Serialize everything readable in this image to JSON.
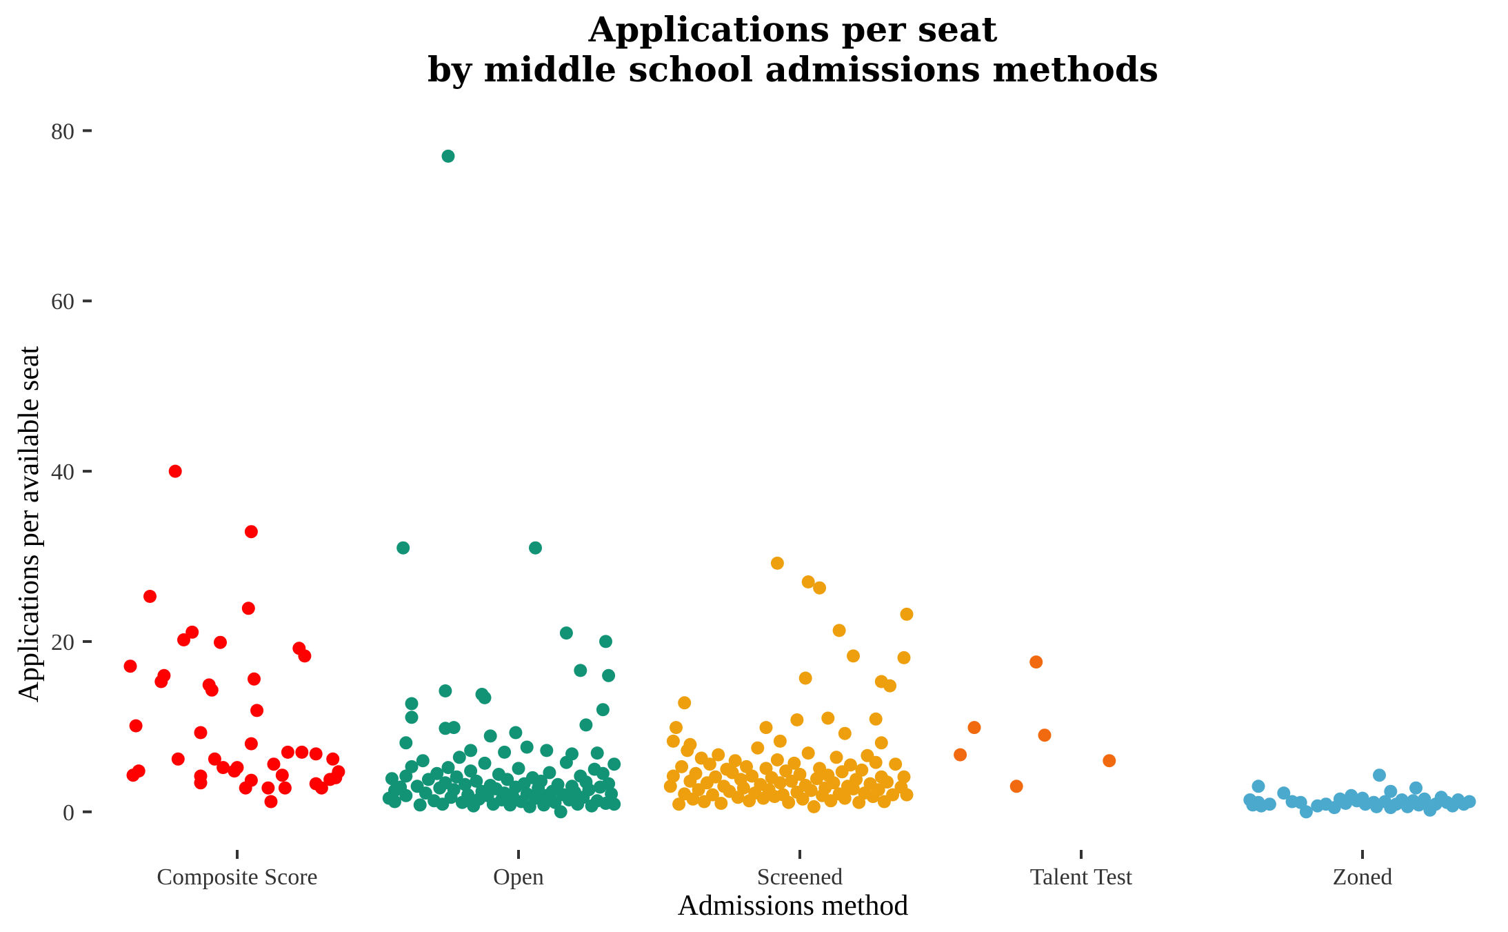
{
  "chart_data": {
    "type": "scatter",
    "title_lines": [
      "Applications per seat",
      "by middle school admissions methods"
    ],
    "xlabel": "Admissions method",
    "ylabel": "Applications per available seat",
    "ylim": [
      -3.5,
      84
    ],
    "yticks": [
      0,
      20,
      40,
      60,
      80
    ],
    "grid": false,
    "legend": "none",
    "categories": [
      "Composite Score",
      "Open",
      "Screened",
      "Talent Test",
      "Zoned"
    ],
    "series": [
      {
        "category": "Composite Score",
        "color": "#ff0000",
        "points": [
          [
            -0.38,
            17.1
          ],
          [
            -0.36,
            10.1
          ],
          [
            -0.37,
            4.3
          ],
          [
            -0.35,
            4.8
          ],
          [
            -0.31,
            25.3
          ],
          [
            -0.27,
            15.3
          ],
          [
            -0.26,
            16.0
          ],
          [
            -0.22,
            40.0
          ],
          [
            -0.21,
            6.2
          ],
          [
            -0.19,
            20.2
          ],
          [
            -0.16,
            21.1
          ],
          [
            -0.13,
            9.3
          ],
          [
            -0.13,
            3.4
          ],
          [
            -0.13,
            4.2
          ],
          [
            -0.1,
            14.9
          ],
          [
            -0.09,
            14.3
          ],
          [
            -0.08,
            6.2
          ],
          [
            -0.06,
            19.9
          ],
          [
            -0.05,
            5.2
          ],
          [
            -0.01,
            4.8
          ],
          [
            0.0,
            5.2
          ],
          [
            0.03,
            2.8
          ],
          [
            0.04,
            23.9
          ],
          [
            0.05,
            8.0
          ],
          [
            0.05,
            3.7
          ],
          [
            0.05,
            32.9
          ],
          [
            0.06,
            15.6
          ],
          [
            0.07,
            11.9
          ],
          [
            0.11,
            2.8
          ],
          [
            0.12,
            1.2
          ],
          [
            0.13,
            5.6
          ],
          [
            0.16,
            4.3
          ],
          [
            0.17,
            2.8
          ],
          [
            0.18,
            7.0
          ],
          [
            0.22,
            19.2
          ],
          [
            0.23,
            7.0
          ],
          [
            0.24,
            18.3
          ],
          [
            0.28,
            6.8
          ],
          [
            0.28,
            3.3
          ],
          [
            0.3,
            2.8
          ],
          [
            0.33,
            3.8
          ],
          [
            0.34,
            6.2
          ],
          [
            0.35,
            4.0
          ],
          [
            0.36,
            4.7
          ]
        ]
      },
      {
        "category": "Open",
        "color": "#129376",
        "points": [
          [
            -0.25,
            77.0
          ],
          [
            -0.41,
            31.0
          ],
          [
            0.06,
            31.0
          ],
          [
            0.17,
            21.0
          ],
          [
            0.31,
            20.0
          ],
          [
            0.22,
            16.6
          ],
          [
            0.32,
            16.0
          ],
          [
            -0.26,
            14.2
          ],
          [
            -0.13,
            13.8
          ],
          [
            -0.12,
            13.4
          ],
          [
            -0.38,
            12.7
          ],
          [
            0.3,
            12.0
          ],
          [
            -0.38,
            11.1
          ],
          [
            0.24,
            10.2
          ],
          [
            -0.26,
            9.8
          ],
          [
            -0.23,
            9.9
          ],
          [
            -0.01,
            9.3
          ],
          [
            -0.1,
            8.9
          ],
          [
            -0.4,
            8.1
          ],
          [
            0.03,
            7.6
          ],
          [
            -0.17,
            7.2
          ],
          [
            -0.05,
            7.0
          ],
          [
            0.1,
            7.2
          ],
          [
            0.19,
            6.8
          ],
          [
            0.28,
            6.9
          ],
          [
            -0.45,
            3.9
          ],
          [
            -0.44,
            2.5
          ],
          [
            -0.46,
            1.6
          ],
          [
            -0.44,
            1.2
          ],
          [
            -0.42,
            2.9
          ],
          [
            -0.4,
            4.2
          ],
          [
            -0.4,
            1.9
          ],
          [
            -0.38,
            5.3
          ],
          [
            -0.36,
            3.0
          ],
          [
            -0.35,
            0.8
          ],
          [
            -0.34,
            6.0
          ],
          [
            -0.33,
            2.2
          ],
          [
            -0.32,
            3.8
          ],
          [
            -0.3,
            1.3
          ],
          [
            -0.29,
            4.5
          ],
          [
            -0.28,
            2.8
          ],
          [
            -0.27,
            0.9
          ],
          [
            -0.26,
            3.4
          ],
          [
            -0.25,
            5.2
          ],
          [
            -0.24,
            1.7
          ],
          [
            -0.23,
            2.6
          ],
          [
            -0.22,
            4.1
          ],
          [
            -0.21,
            6.4
          ],
          [
            -0.2,
            1.1
          ],
          [
            -0.19,
            3.2
          ],
          [
            -0.18,
            2.0
          ],
          [
            -0.17,
            4.8
          ],
          [
            -0.16,
            0.7
          ],
          [
            -0.15,
            3.6
          ],
          [
            -0.14,
            1.5
          ],
          [
            -0.13,
            2.4
          ],
          [
            -0.12,
            5.7
          ],
          [
            -0.11,
            1.9
          ],
          [
            -0.1,
            3.1
          ],
          [
            -0.09,
            0.9
          ],
          [
            -0.08,
            2.7
          ],
          [
            -0.07,
            4.4
          ],
          [
            -0.06,
            1.4
          ],
          [
            -0.05,
            2.2
          ],
          [
            -0.04,
            3.8
          ],
          [
            -0.03,
            0.8
          ],
          [
            -0.02,
            1.8
          ],
          [
            -0.01,
            2.9
          ],
          [
            0.0,
            5.1
          ],
          [
            0.01,
            1.2
          ],
          [
            0.02,
            3.3
          ],
          [
            0.03,
            2.1
          ],
          [
            0.04,
            0.6
          ],
          [
            0.05,
            4.0
          ],
          [
            0.06,
            1.6
          ],
          [
            0.07,
            2.8
          ],
          [
            0.08,
            3.6
          ],
          [
            0.09,
            0.8
          ],
          [
            0.1,
            1.9
          ],
          [
            0.11,
            4.6
          ],
          [
            0.12,
            2.4
          ],
          [
            0.13,
            1.1
          ],
          [
            0.14,
            3.2
          ],
          [
            0.15,
            0.0
          ],
          [
            0.16,
            2.0
          ],
          [
            0.17,
            5.8
          ],
          [
            0.18,
            1.4
          ],
          [
            0.19,
            3.0
          ],
          [
            0.2,
            2.3
          ],
          [
            0.21,
            0.9
          ],
          [
            0.22,
            4.2
          ],
          [
            0.23,
            1.7
          ],
          [
            0.24,
            3.5
          ],
          [
            0.25,
            2.6
          ],
          [
            0.26,
            0.7
          ],
          [
            0.27,
            5.0
          ],
          [
            0.28,
            1.3
          ],
          [
            0.29,
            2.9
          ],
          [
            0.3,
            4.5
          ],
          [
            0.31,
            1.0
          ],
          [
            0.32,
            3.3
          ],
          [
            0.33,
            2.1
          ],
          [
            0.34,
            5.6
          ],
          [
            0.34,
            0.9
          ]
        ]
      },
      {
        "category": "Screened",
        "color": "#ee9f0d",
        "points": [
          [
            -0.08,
            29.2
          ],
          [
            0.03,
            27.0
          ],
          [
            0.07,
            26.3
          ],
          [
            0.14,
            21.3
          ],
          [
            0.38,
            23.2
          ],
          [
            0.19,
            18.3
          ],
          [
            0.37,
            18.1
          ],
          [
            0.29,
            15.3
          ],
          [
            0.32,
            14.8
          ],
          [
            0.02,
            15.7
          ],
          [
            -0.41,
            12.8
          ],
          [
            0.1,
            11.0
          ],
          [
            -0.01,
            10.8
          ],
          [
            0.27,
            10.9
          ],
          [
            -0.44,
            9.9
          ],
          [
            -0.12,
            9.9
          ],
          [
            0.16,
            9.2
          ],
          [
            -0.45,
            8.3
          ],
          [
            -0.39,
            7.9
          ],
          [
            -0.07,
            8.3
          ],
          [
            0.29,
            8.1
          ],
          [
            -0.46,
            3.0
          ],
          [
            -0.45,
            4.2
          ],
          [
            -0.43,
            0.9
          ],
          [
            -0.42,
            5.3
          ],
          [
            -0.41,
            2.1
          ],
          [
            -0.4,
            7.2
          ],
          [
            -0.39,
            3.6
          ],
          [
            -0.38,
            1.5
          ],
          [
            -0.37,
            4.5
          ],
          [
            -0.36,
            2.6
          ],
          [
            -0.35,
            6.3
          ],
          [
            -0.34,
            1.2
          ],
          [
            -0.33,
            3.4
          ],
          [
            -0.32,
            5.6
          ],
          [
            -0.31,
            2.0
          ],
          [
            -0.3,
            4.1
          ],
          [
            -0.29,
            6.7
          ],
          [
            -0.28,
            1.0
          ],
          [
            -0.27,
            3.0
          ],
          [
            -0.26,
            5.0
          ],
          [
            -0.25,
            2.4
          ],
          [
            -0.24,
            4.6
          ],
          [
            -0.23,
            6.0
          ],
          [
            -0.22,
            1.7
          ],
          [
            -0.21,
            3.8
          ],
          [
            -0.2,
            2.8
          ],
          [
            -0.19,
            5.3
          ],
          [
            -0.18,
            1.3
          ],
          [
            -0.17,
            4.2
          ],
          [
            -0.16,
            2.2
          ],
          [
            -0.15,
            7.5
          ],
          [
            -0.14,
            3.2
          ],
          [
            -0.13,
            1.6
          ],
          [
            -0.12,
            5.1
          ],
          [
            -0.11,
            2.6
          ],
          [
            -0.1,
            4.0
          ],
          [
            -0.09,
            1.8
          ],
          [
            -0.08,
            6.1
          ],
          [
            -0.07,
            3.4
          ],
          [
            -0.06,
            2.0
          ],
          [
            -0.05,
            4.8
          ],
          [
            -0.04,
            1.1
          ],
          [
            -0.03,
            3.6
          ],
          [
            -0.02,
            5.7
          ],
          [
            -0.01,
            2.3
          ],
          [
            0.0,
            4.4
          ],
          [
            0.01,
            1.5
          ],
          [
            0.02,
            3.1
          ],
          [
            0.03,
            6.9
          ],
          [
            0.04,
            2.5
          ],
          [
            0.05,
            0.6
          ],
          [
            0.06,
            3.9
          ],
          [
            0.07,
            5.1
          ],
          [
            0.08,
            1.9
          ],
          [
            0.09,
            2.8
          ],
          [
            0.1,
            4.3
          ],
          [
            0.11,
            1.3
          ],
          [
            0.12,
            3.4
          ],
          [
            0.13,
            6.4
          ],
          [
            0.14,
            2.1
          ],
          [
            0.15,
            4.7
          ],
          [
            0.16,
            1.6
          ],
          [
            0.17,
            3.0
          ],
          [
            0.18,
            5.5
          ],
          [
            0.19,
            2.7
          ],
          [
            0.2,
            3.8
          ],
          [
            0.21,
            1.1
          ],
          [
            0.22,
            4.9
          ],
          [
            0.23,
            2.2
          ],
          [
            0.24,
            6.6
          ],
          [
            0.25,
            3.3
          ],
          [
            0.26,
            1.8
          ],
          [
            0.27,
            5.8
          ],
          [
            0.28,
            2.6
          ],
          [
            0.29,
            4.1
          ],
          [
            0.3,
            1.2
          ],
          [
            0.31,
            3.5
          ],
          [
            0.33,
            2.0
          ],
          [
            0.34,
            5.6
          ],
          [
            0.36,
            2.9
          ],
          [
            0.37,
            4.1
          ],
          [
            0.38,
            2.0
          ]
        ]
      },
      {
        "category": "Talent Test",
        "color": "#f26a10",
        "points": [
          [
            -0.16,
            17.6
          ],
          [
            -0.38,
            9.9
          ],
          [
            -0.13,
            9.0
          ],
          [
            -0.43,
            6.7
          ],
          [
            0.1,
            6.0
          ],
          [
            -0.23,
            3.0
          ]
        ]
      },
      {
        "category": "Zoned",
        "color": "#4ba9ce",
        "points": [
          [
            0.06,
            4.3
          ],
          [
            -0.37,
            3.0
          ],
          [
            0.19,
            2.8
          ],
          [
            -0.28,
            2.2
          ],
          [
            0.1,
            2.4
          ],
          [
            -0.4,
            1.4
          ],
          [
            -0.39,
            0.8
          ],
          [
            -0.37,
            1.1
          ],
          [
            -0.36,
            0.7
          ],
          [
            -0.25,
            1.2
          ],
          [
            -0.22,
            1.1
          ],
          [
            -0.2,
            0.0
          ],
          [
            -0.16,
            0.7
          ],
          [
            -0.13,
            0.9
          ],
          [
            -0.1,
            0.5
          ],
          [
            -0.08,
            1.5
          ],
          [
            -0.06,
            1.0
          ],
          [
            -0.04,
            1.9
          ],
          [
            -0.02,
            1.3
          ],
          [
            0.0,
            1.6
          ],
          [
            0.01,
            0.9
          ],
          [
            0.04,
            1.1
          ],
          [
            0.05,
            0.6
          ],
          [
            0.08,
            1.2
          ],
          [
            0.12,
            0.9
          ],
          [
            0.14,
            1.4
          ],
          [
            0.16,
            0.6
          ],
          [
            0.18,
            1.3
          ],
          [
            0.2,
            0.8
          ],
          [
            0.22,
            1.5
          ],
          [
            0.24,
            0.2
          ],
          [
            0.26,
            0.9
          ],
          [
            0.28,
            1.7
          ],
          [
            0.3,
            1.1
          ],
          [
            0.32,
            0.7
          ],
          [
            0.34,
            1.4
          ],
          [
            0.36,
            0.9
          ],
          [
            0.38,
            1.2
          ],
          [
            0.1,
            0.5
          ],
          [
            -0.33,
            0.9
          ]
        ]
      }
    ]
  }
}
